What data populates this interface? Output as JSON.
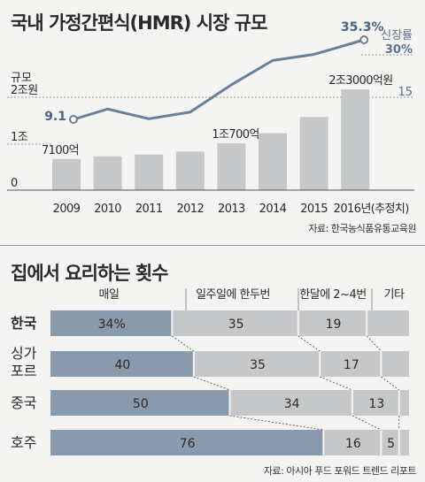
{
  "chart1": {
    "title": "국내 가정간편식(HMR) 시장 규모",
    "y_label_top": "규모",
    "source": "자료: 한국농식품유통교육원",
    "left_ticks": [
      "2조원",
      "1조",
      "0"
    ],
    "right_label": "신장률",
    "right_ticks": [
      "30%",
      "15"
    ],
    "colors": {
      "bars": "#c6c7c9",
      "line": "#6d7f93",
      "grid": "#999999"
    }
  },
  "chart2": {
    "title": "집에서 요리하는 횟수",
    "source": "자료: 아시아 푸드 포워드 트렌드 리포트",
    "colors": {
      "daily": "#8a9aad",
      "other": "#c6c7c9"
    }
  },
  "chart_data": [
    {
      "type": "bar",
      "title": "국내 가정간편식(HMR) 시장 규모",
      "xlabel": "",
      "ylabel": "규모",
      "categories": [
        "2009",
        "2010",
        "2011",
        "2012",
        "2013",
        "2014",
        "2015",
        "2016년(추정치)"
      ],
      "series": [
        {
          "name": "규모",
          "type": "bar",
          "unit": "억원",
          "values": [
            7100,
            7700,
            8100,
            8800,
            10700,
            13000,
            16700,
            23000
          ],
          "value_labels": [
            "7100억",
            "",
            "",
            "",
            "1조700억",
            "",
            "",
            "2조3000억원"
          ]
        },
        {
          "name": "신장률",
          "type": "line",
          "unit": "%",
          "values": [
            9.1,
            12.5,
            9.3,
            11.5,
            20.5,
            28.5,
            30.5,
            35.3
          ],
          "value_labels": [
            "9.1",
            "",
            "",
            "",
            "",
            "",
            "",
            "35.3%"
          ]
        }
      ],
      "ylim": [
        0,
        25000
      ],
      "y2lim": [
        0,
        37
      ]
    },
    {
      "type": "bar",
      "stacked": true,
      "orientation": "horizontal",
      "title": "집에서 요리하는 횟수",
      "categories": [
        "한국",
        "싱가포르",
        "중국",
        "호주"
      ],
      "series": [
        {
          "name": "매일",
          "values": [
            34,
            40,
            50,
            76
          ],
          "labels": [
            "34%",
            "40",
            "50",
            "76"
          ]
        },
        {
          "name": "일주일에 한두번",
          "values": [
            35,
            35,
            34,
            16
          ],
          "labels": [
            "35",
            "35",
            "34",
            "16"
          ]
        },
        {
          "name": "한달에 2~4번",
          "values": [
            19,
            17,
            13,
            5
          ],
          "labels": [
            "19",
            "17",
            "13",
            "5"
          ]
        },
        {
          "name": "기타",
          "values": [
            12,
            8,
            3,
            3
          ],
          "labels": [
            "",
            "",
            "",
            ""
          ]
        }
      ],
      "category_labels": [
        [
          "한국"
        ],
        [
          "싱가",
          "포르"
        ],
        [
          "중국"
        ],
        [
          "호주"
        ]
      ]
    }
  ]
}
